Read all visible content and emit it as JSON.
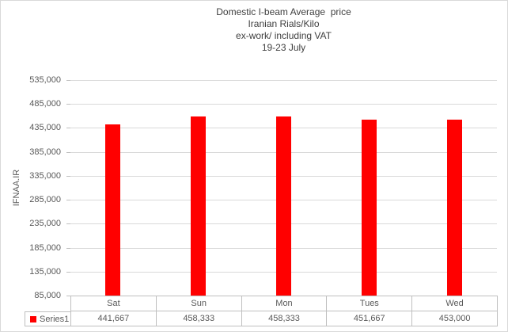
{
  "title_lines": [
    "Domestic I-beam Average  price",
    "Iranian Rials/Kilo",
    "ex-work/ including VAT",
    "19-23 July"
  ],
  "y_axis_title": "IFNAA.IR",
  "legend": {
    "series_label": "Series1"
  },
  "chart_data": {
    "type": "bar",
    "title": "Domestic I-beam Average price Iranian Rials/Kilo ex-work/ including VAT 19-23 July",
    "ylabel": "IFNAA.IR",
    "categories": [
      "Sat",
      "Sun",
      "Mon",
      "Tues",
      "Wed"
    ],
    "series": [
      {
        "name": "Series1",
        "values": [
          441667,
          458333,
          458333,
          451667,
          453000
        ]
      }
    ],
    "value_labels": [
      "441,667",
      "458,333",
      "458,333",
      "451,667",
      "453,000"
    ],
    "ylim": [
      85000,
      535000
    ],
    "ytick_step": 50000,
    "ytick_labels": [
      "535,000",
      "485,000",
      "435,000",
      "385,000",
      "335,000",
      "285,000",
      "235,000",
      "185,000",
      "135,000",
      "85,000"
    ],
    "grid": true,
    "legend_position": "data-table-left",
    "colors": {
      "bar": "#ff0000",
      "legend_key": "#ff0000",
      "gridline": "#d9d9d9",
      "table_border": "#bfbfbf",
      "text": "#595959",
      "outer_border": "#d9d9d9"
    }
  }
}
